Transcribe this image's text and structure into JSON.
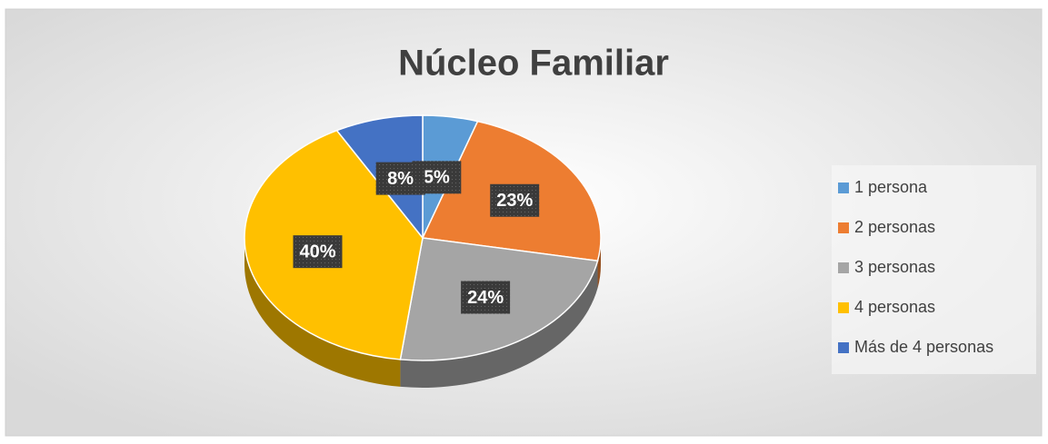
{
  "chart_data": {
    "type": "pie",
    "title": "Núcleo Familiar",
    "categories": [
      "1 persona",
      "2 personas",
      "3 personas",
      "4 personas",
      "Más de 4 personas"
    ],
    "values": [
      5,
      23,
      24,
      40,
      8
    ],
    "value_labels": [
      "5%",
      "23%",
      "24%",
      "40%",
      "8%"
    ],
    "colors": [
      "#5b9bd5",
      "#ed7d31",
      "#a5a5a5",
      "#ffc000",
      "#4472c4"
    ],
    "legend": "right"
  }
}
